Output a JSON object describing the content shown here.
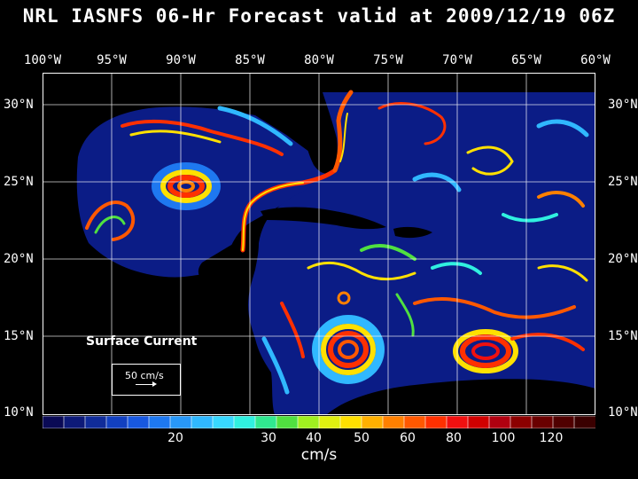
{
  "title": "NRL IASNFS  06-Hr Forecast valid at 2009/12/19 06Z",
  "lon_labels": [
    "100°W",
    "95°W",
    "90°W",
    "85°W",
    "80°W",
    "75°W",
    "70°W",
    "65°W",
    "60°W"
  ],
  "lat_labels": [
    "30°N",
    "25°N",
    "20°N",
    "15°N",
    "10°N"
  ],
  "legend": {
    "labels": [
      "20",
      "30",
      "40",
      "50",
      "60",
      "80",
      "100",
      "120"
    ],
    "unit": "cm/s",
    "colors": [
      "#0a0a55",
      "#0d1a78",
      "#102c9a",
      "#1240c0",
      "#1858e0",
      "#1e78f0",
      "#2898f8",
      "#30b8ff",
      "#38d8ff",
      "#30f0e0",
      "#30e890",
      "#50e040",
      "#a0f020",
      "#e0f010",
      "#ffe000",
      "#ffb000",
      "#ff8000",
      "#ff5800",
      "#ff3000",
      "#f01010",
      "#d00000",
      "#b00010",
      "#8c0000",
      "#6a0000",
      "#500000",
      "#3a0000"
    ]
  },
  "annotation": {
    "title": "Surface Current",
    "reference": "50 cm/s"
  }
}
